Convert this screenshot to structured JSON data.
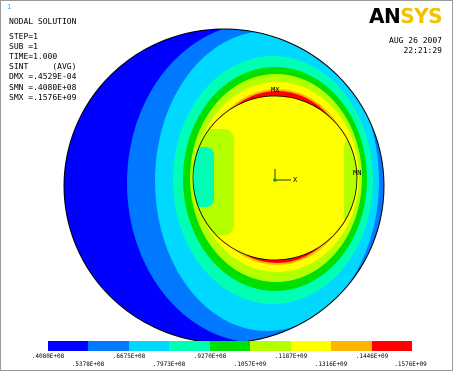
{
  "header": {
    "window_number": "1",
    "title": "NODAL SOLUTION",
    "lines_a": [
      "STEP=1",
      "SUB =1",
      "TIME=1.000",
      "SINT     (AVG)"
    ],
    "lines_b": [
      "DMX =.4529E-04",
      "SMN =.4080E+08",
      "SMX =.1576E+09"
    ]
  },
  "logo": {
    "part1": "AN",
    "part2": "SYS"
  },
  "datetime": {
    "date": "AUG 26 2007",
    "time": "22:21:29"
  },
  "plot_labels": {
    "max": "MX",
    "min": "MN",
    "axis_x": "X"
  },
  "legend": {
    "colors": [
      "#0000ff",
      "#0078ff",
      "#00d8ff",
      "#00ffb4",
      "#00e000",
      "#b4ff00",
      "#ffff00",
      "#ffb400",
      "#ff0000"
    ],
    "top_labels": [
      ".4080E+08",
      ".6675E+08",
      ".9270E+08",
      ".1187E+09",
      ".1446E+09"
    ],
    "bottom_labels": [
      ".5378E+08",
      ".7973E+08",
      ".1057E+09",
      ".1316E+09",
      ".1576E+09"
    ]
  }
}
